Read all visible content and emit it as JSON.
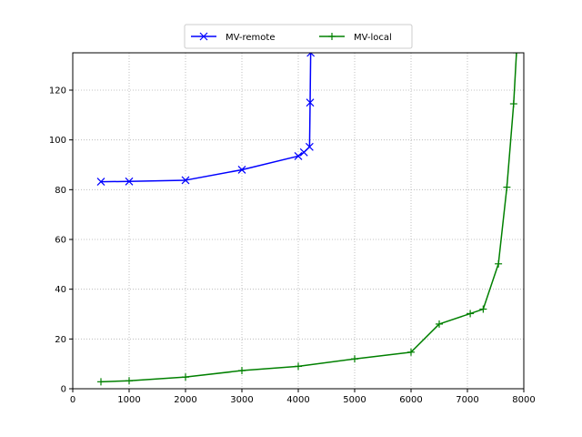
{
  "chart_data": {
    "type": "line",
    "title": "",
    "xlabel": "",
    "ylabel": "",
    "xlim": [
      0,
      8000
    ],
    "ylim": [
      0,
      135
    ],
    "xticks": [
      0,
      1000,
      2000,
      3000,
      4000,
      5000,
      6000,
      7000,
      8000
    ],
    "yticks": [
      0,
      20,
      40,
      60,
      80,
      100,
      120
    ],
    "grid": true,
    "legend": {
      "placement": "top-center",
      "columns": 2
    },
    "series": [
      {
        "name": "MV-remote",
        "color": "#0000ff",
        "marker": "x",
        "x": [
          500,
          1000,
          2000,
          3000,
          4000,
          4100,
          4200,
          4210,
          4220
        ],
        "y": [
          83.2,
          83.3,
          83.8,
          88.0,
          93.5,
          95.0,
          97.2,
          115,
          135
        ]
      },
      {
        "name": "MV-local",
        "color": "#008000",
        "marker": "+",
        "x": [
          500,
          1000,
          2000,
          3000,
          4000,
          5000,
          6000,
          6500,
          7050,
          7280,
          7550,
          7700,
          7820,
          7870
        ],
        "y": [
          2.8,
          3.2,
          4.7,
          7.3,
          9.0,
          12.0,
          14.7,
          26.0,
          30.2,
          32.0,
          50.2,
          81.0,
          114.5,
          135
        ]
      }
    ]
  }
}
